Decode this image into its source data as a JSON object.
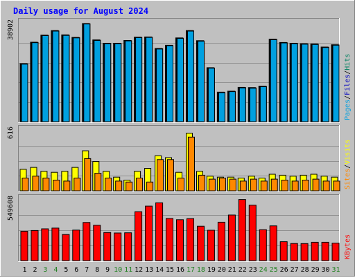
{
  "title": "Daily usage for August 2024",
  "colors": {
    "background": "#c0c0c0",
    "title": "#0000ff",
    "pages": "#00a0e0",
    "files": "#0000c0",
    "hits": "#008060",
    "sites": "#ff8800",
    "visits": "#ffff00",
    "kbytes": "#ff0000",
    "weekend_label": "#208020",
    "weekday_label": "#000000"
  },
  "chart_data": {
    "type": "bar",
    "title": "Daily usage for August 2024",
    "categories": [
      "1",
      "2",
      "3",
      "4",
      "5",
      "6",
      "7",
      "8",
      "9",
      "10",
      "11",
      "12",
      "13",
      "14",
      "15",
      "16",
      "17",
      "18",
      "19",
      "20",
      "21",
      "22",
      "23",
      "24",
      "25",
      "26",
      "27",
      "28",
      "29",
      "30",
      "31"
    ],
    "weekend_days": [
      "3",
      "4",
      "10",
      "11",
      "17",
      "18",
      "24",
      "25",
      "31"
    ],
    "panels": [
      {
        "name": "hits-files-pages",
        "axis_max_label": "38902",
        "ylim": [
          0,
          38902
        ],
        "legend": [
          "Pages",
          "/",
          "Files",
          "/",
          "Hits"
        ],
        "series": [
          {
            "name": "Hits",
            "values": [
              23000,
              31500,
              34300,
              36100,
              34400,
              33400,
              38900,
              32400,
              31100,
              31100,
              32200,
              33500,
              33600,
              29000,
              30300,
              33200,
              36100,
              32100,
              21400,
              11700,
              12100,
              13600,
              13500,
              14100,
              32700,
              31400,
              31100,
              30900,
              30800,
              29600,
              30500
            ]
          },
          {
            "name": "Files",
            "values": [
              22900,
              31400,
              34200,
              36000,
              34300,
              33300,
              38800,
              32300,
              31000,
              31000,
              32100,
              33400,
              33500,
              28900,
              30200,
              33100,
              36000,
              32000,
              21300,
              11600,
              12000,
              13500,
              13400,
              14000,
              32600,
              31300,
              31000,
              30800,
              30700,
              29500,
              30400
            ]
          },
          {
            "name": "Pages",
            "values": [
              22800,
              31300,
              34100,
              35900,
              34200,
              33200,
              38700,
              32200,
              30900,
              30900,
              32000,
              33300,
              33400,
              28800,
              30100,
              33000,
              35900,
              31900,
              21200,
              11500,
              11900,
              13400,
              13300,
              13900,
              32500,
              31200,
              30900,
              30700,
              30600,
              29400,
              30300
            ]
          }
        ]
      },
      {
        "name": "visits-sites",
        "axis_max_label": "616",
        "ylim": [
          0,
          616
        ],
        "legend": [
          "Sites",
          "/",
          "Visits"
        ],
        "series": [
          {
            "name": "Visits",
            "values": [
              220,
              240,
              200,
              190,
              200,
              240,
              410,
              300,
              200,
              140,
              110,
              200,
              230,
              360,
              340,
              190,
              590,
              200,
              150,
              140,
              140,
              130,
              150,
              130,
              170,
              160,
              150,
              160,
              170,
              150,
              140
            ]
          },
          {
            "name": "Sites",
            "values": [
              130,
              150,
              130,
              110,
              100,
              130,
              330,
              180,
              130,
              100,
              90,
              130,
              90,
              320,
              320,
              130,
              550,
              160,
              120,
              130,
              120,
              100,
              120,
              100,
              120,
              110,
              100,
              110,
              120,
              100,
              100
            ]
          }
        ]
      },
      {
        "name": "kbytes",
        "axis_max_label": "549608",
        "ylim": [
          0,
          549608
        ],
        "legend": [
          "KBytes"
        ],
        "series": [
          {
            "name": "KBytes",
            "values": [
              265000,
              272000,
              287000,
              294000,
              236000,
              276000,
              345000,
              320000,
              254000,
              250000,
              252000,
              442000,
              493000,
              523000,
              381000,
              370000,
              380000,
              311000,
              275000,
              347000,
              412000,
              552000,
              501000,
              280000,
              314000,
              171000,
              155000,
              154000,
              166000,
              166000,
              158000
            ]
          }
        ]
      }
    ]
  }
}
